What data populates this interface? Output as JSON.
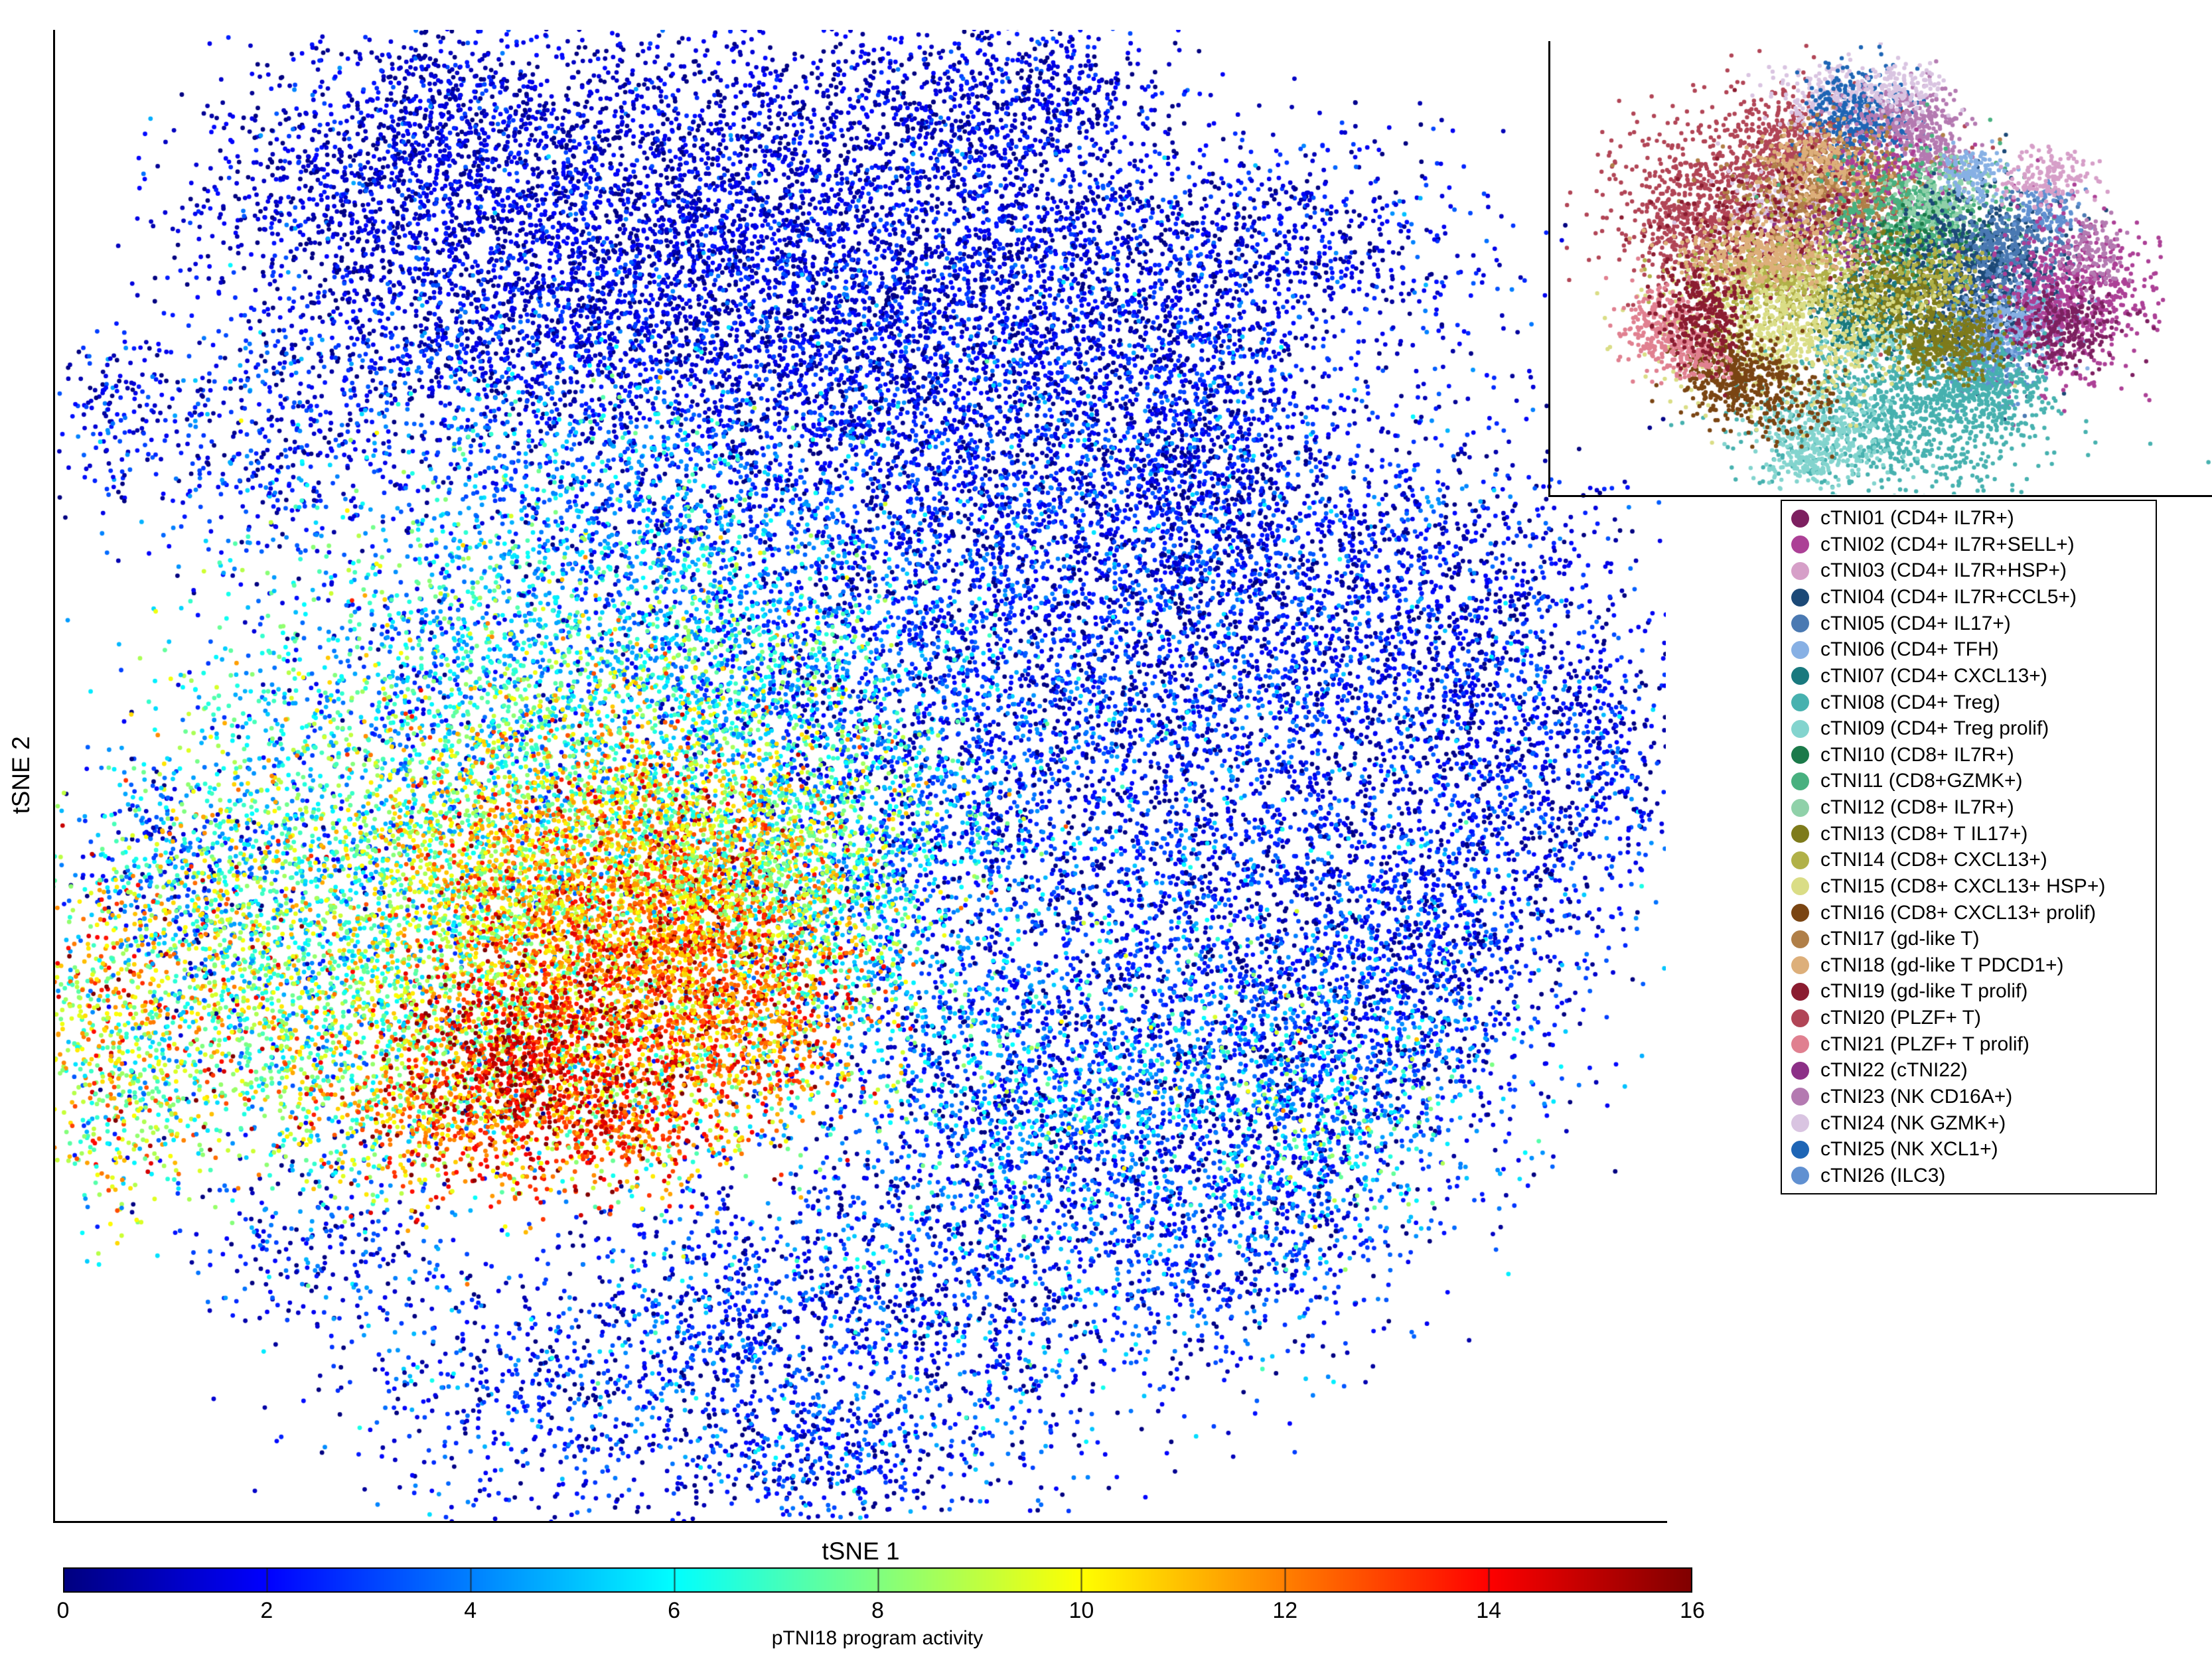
{
  "axes": {
    "xlabel": "tSNE 1",
    "ylabel": "tSNE 2"
  },
  "colorbar": {
    "label": "pTNI18 program activity",
    "min": 0,
    "max": 16,
    "ticks": [
      0,
      2,
      4,
      6,
      8,
      10,
      12,
      14,
      16
    ],
    "colormap": "jet"
  },
  "legend": {
    "entries": [
      {
        "id": 1,
        "label": "cTNI01 (CD4+ IL7R+)",
        "color": "#7D2060"
      },
      {
        "id": 2,
        "label": "cTNI02 (CD4+ IL7R+SELL+)",
        "color": "#AC4096"
      },
      {
        "id": 3,
        "label": "cTNI03 (CD4+ IL7R+HSP+)",
        "color": "#D69FC8"
      },
      {
        "id": 4,
        "label": "cTNI04 (CD4+ IL7R+CCL5+)",
        "color": "#1C4977"
      },
      {
        "id": 5,
        "label": "cTNI05 (CD4+ IL17+)",
        "color": "#4A79B2"
      },
      {
        "id": 6,
        "label": "cTNI06 (CD4+ TFH)",
        "color": "#87B0E4"
      },
      {
        "id": 7,
        "label": "cTNI07 (CD4+ CXCL13+)",
        "color": "#19797E"
      },
      {
        "id": 8,
        "label": "cTNI08 (CD4+ Treg)",
        "color": "#47B1AF"
      },
      {
        "id": 9,
        "label": "cTNI09 (CD4+ Treg prolif)",
        "color": "#83D4CE"
      },
      {
        "id": 10,
        "label": "cTNI10 (CD8+ IL7R+)",
        "color": "#1B7A4A"
      },
      {
        "id": 11,
        "label": "cTNI11 (CD8+GZMK+)",
        "color": "#48B07F"
      },
      {
        "id": 12,
        "label": "cTNI12 (CD8+ IL7R+)",
        "color": "#90D1A9"
      },
      {
        "id": 13,
        "label": "cTNI13 (CD8+ T IL17+)",
        "color": "#7E7B1B"
      },
      {
        "id": 14,
        "label": "cTNI14 (CD8+ CXCL13+)",
        "color": "#B1B148"
      },
      {
        "id": 15,
        "label": "cTNI15 (CD8+ CXCL13+ HSP+)",
        "color": "#DADD86"
      },
      {
        "id": 16,
        "label": "cTNI16 (CD8+ CXCL13+ prolif)",
        "color": "#7A4513"
      },
      {
        "id": 17,
        "label": "cTNI17 (gd-like T)",
        "color": "#B07F48"
      },
      {
        "id": 18,
        "label": "cTNI18 (gd-like T PDCD1+)",
        "color": "#DDAF7A"
      },
      {
        "id": 19,
        "label": "cTNI19 (gd-like T prolif)",
        "color": "#8B1C30"
      },
      {
        "id": 20,
        "label": "cTNI20 (PLZF+ T)",
        "color": "#B14556"
      },
      {
        "id": 21,
        "label": "cTNI21 (PLZF+ T prolif)",
        "color": "#E08090"
      },
      {
        "id": 22,
        "label": "cTNI22 (cTNI22)",
        "color": "#8C3087"
      },
      {
        "id": 23,
        "label": "cTNI23 (NK CD16A+)",
        "color": "#B47AB1"
      },
      {
        "id": 24,
        "label": "cTNI24 (NK GZMK+)",
        "color": "#D9C4E1"
      },
      {
        "id": 25,
        "label": "cTNI25 (NK XCL1+)",
        "color": "#1E65B5"
      },
      {
        "id": 26,
        "label": "cTNI26 (ILC3)",
        "color": "#6090D1"
      }
    ]
  },
  "chart_data": {
    "type": "scatter",
    "title": "",
    "main_panel": {
      "kind": "tsne_embedding_colored_by_program_activity",
      "xlabel": "tSNE 1",
      "ylabel": "tSNE 2",
      "color_by": "pTNI18 program activity",
      "value_range": [
        0,
        16
      ],
      "colormap": "jet",
      "note": "Dense single-cell map, mostly low activity (blue); high activity (orange/red, up to 16) concentrated in left-center-lower region with dark-red cores; estimated as gaussian blob mixture",
      "cluster_fields": [
        "cx",
        "cy",
        "rx",
        "ry",
        "n",
        "value_mean",
        "value_sd"
      ],
      "clusters": [
        [
          0.24,
          0.055,
          0.035,
          0.03,
          350,
          1.2,
          1.1
        ],
        [
          0.175,
          0.105,
          0.05,
          0.04,
          500,
          1.3,
          1.2
        ],
        [
          0.28,
          0.115,
          0.09,
          0.055,
          1300,
          1.1,
          1.0
        ],
        [
          0.42,
          0.1,
          0.09,
          0.06,
          1500,
          1.2,
          1.1
        ],
        [
          0.56,
          0.05,
          0.05,
          0.03,
          500,
          1.3,
          1.1
        ],
        [
          0.625,
          0.035,
          0.03,
          0.02,
          150,
          1.3,
          1.1
        ],
        [
          0.6,
          0.13,
          0.07,
          0.05,
          900,
          1.4,
          1.2
        ],
        [
          0.7,
          0.165,
          0.05,
          0.04,
          500,
          1.5,
          1.3
        ],
        [
          0.8,
          0.145,
          0.05,
          0.04,
          450,
          1.4,
          1.2
        ],
        [
          0.345,
          0.19,
          0.07,
          0.05,
          900,
          1.6,
          1.3
        ],
        [
          0.48,
          0.185,
          0.08,
          0.055,
          1000,
          1.5,
          1.3
        ],
        [
          0.24,
          0.21,
          0.06,
          0.045,
          650,
          1.8,
          1.5
        ],
        [
          0.57,
          0.23,
          0.07,
          0.05,
          800,
          1.7,
          1.4
        ],
        [
          0.67,
          0.26,
          0.06,
          0.05,
          700,
          1.8,
          1.5
        ],
        [
          0.715,
          0.285,
          0.03,
          0.055,
          450,
          1.9,
          1.5
        ],
        [
          0.47,
          0.27,
          0.07,
          0.05,
          800,
          1.9,
          1.6
        ],
        [
          0.13,
          0.28,
          0.05,
          0.045,
          450,
          2.0,
          1.6
        ],
        [
          0.035,
          0.25,
          0.02,
          0.03,
          130,
          1.8,
          1.4
        ],
        [
          0.75,
          0.36,
          0.08,
          0.07,
          1100,
          1.8,
          1.5
        ],
        [
          0.86,
          0.38,
          0.06,
          0.06,
          700,
          1.7,
          1.4
        ],
        [
          0.92,
          0.47,
          0.045,
          0.06,
          500,
          1.8,
          1.5
        ],
        [
          0.965,
          0.49,
          0.02,
          0.035,
          150,
          1.7,
          1.3
        ],
        [
          0.8,
          0.5,
          0.08,
          0.08,
          1200,
          2.0,
          1.6
        ],
        [
          0.88,
          0.58,
          0.05,
          0.06,
          550,
          1.9,
          1.5
        ],
        [
          0.65,
          0.42,
          0.09,
          0.08,
          1400,
          2.0,
          1.7
        ],
        [
          0.57,
          0.35,
          0.07,
          0.06,
          800,
          2.0,
          1.7
        ],
        [
          0.52,
          0.46,
          0.06,
          0.07,
          700,
          2.4,
          1.9
        ],
        [
          0.62,
          0.55,
          0.07,
          0.07,
          900,
          2.3,
          1.8
        ],
        [
          0.74,
          0.63,
          0.07,
          0.06,
          800,
          2.4,
          1.9
        ],
        [
          0.82,
          0.7,
          0.06,
          0.05,
          600,
          2.6,
          2.0
        ],
        [
          0.68,
          0.73,
          0.08,
          0.06,
          900,
          2.5,
          2.0
        ],
        [
          0.56,
          0.68,
          0.06,
          0.05,
          500,
          3.0,
          2.2
        ],
        [
          0.6,
          0.8,
          0.08,
          0.07,
          1000,
          2.4,
          1.9
        ],
        [
          0.52,
          0.88,
          0.08,
          0.06,
          900,
          2.2,
          1.8
        ],
        [
          0.47,
          0.96,
          0.05,
          0.025,
          350,
          2.0,
          1.6
        ],
        [
          0.4,
          0.86,
          0.05,
          0.05,
          500,
          2.3,
          1.8
        ],
        [
          0.3,
          0.92,
          0.06,
          0.04,
          550,
          2.1,
          1.7
        ],
        [
          0.17,
          0.82,
          0.04,
          0.04,
          300,
          2.2,
          1.7
        ],
        [
          0.74,
          0.82,
          0.05,
          0.04,
          400,
          2.3,
          1.8
        ],
        [
          0.84,
          0.62,
          0.04,
          0.04,
          300,
          2.0,
          1.6
        ],
        [
          0.07,
          0.56,
          0.03,
          0.04,
          250,
          3.0,
          2.0
        ],
        [
          0.3,
          0.38,
          0.08,
          0.06,
          900,
          4.5,
          2.2
        ],
        [
          0.22,
          0.45,
          0.07,
          0.06,
          800,
          5.5,
          2.4
        ],
        [
          0.15,
          0.54,
          0.06,
          0.06,
          700,
          6.0,
          2.6
        ],
        [
          0.36,
          0.45,
          0.07,
          0.05,
          800,
          6.5,
          2.4
        ],
        [
          0.44,
          0.52,
          0.06,
          0.05,
          700,
          7.0,
          2.4
        ],
        [
          0.25,
          0.6,
          0.07,
          0.06,
          900,
          8.0,
          2.6
        ],
        [
          0.18,
          0.68,
          0.06,
          0.05,
          700,
          7.5,
          2.8
        ],
        [
          0.3,
          0.52,
          0.06,
          0.05,
          800,
          8.5,
          2.4
        ],
        [
          0.47,
          0.62,
          0.05,
          0.05,
          550,
          5.5,
          2.4
        ],
        [
          0.52,
          0.56,
          0.05,
          0.05,
          450,
          4.5,
          2.2
        ],
        [
          0.08,
          0.64,
          0.035,
          0.05,
          400,
          9.5,
          3.0
        ],
        [
          0.05,
          0.72,
          0.03,
          0.04,
          300,
          8.0,
          3.0
        ],
        [
          0.25,
          0.68,
          0.06,
          0.05,
          700,
          9.0,
          2.6
        ],
        [
          0.36,
          0.7,
          0.05,
          0.04,
          600,
          9.5,
          2.6
        ],
        [
          0.44,
          0.44,
          0.05,
          0.04,
          450,
          5.0,
          2.2
        ],
        [
          0.75,
          0.7,
          0.05,
          0.04,
          400,
          4.5,
          2.6
        ],
        [
          0.8,
          0.75,
          0.04,
          0.03,
          250,
          5.0,
          2.6
        ],
        [
          0.63,
          0.72,
          0.04,
          0.03,
          250,
          4.5,
          2.4
        ],
        [
          0.13,
          0.6,
          0.05,
          0.05,
          500,
          7.0,
          2.8
        ],
        [
          0.33,
          0.3,
          0.06,
          0.05,
          500,
          3.5,
          2.0
        ],
        [
          0.42,
          0.36,
          0.06,
          0.05,
          500,
          4.0,
          2.2
        ],
        [
          0.035,
          0.66,
          0.025,
          0.05,
          300,
          10.0,
          3.0
        ],
        [
          0.355,
          0.575,
          0.05,
          0.05,
          900,
          11.5,
          2.0
        ],
        [
          0.4,
          0.62,
          0.045,
          0.045,
          900,
          13.0,
          1.8
        ],
        [
          0.33,
          0.64,
          0.05,
          0.045,
          800,
          12.0,
          2.0
        ],
        [
          0.29,
          0.57,
          0.045,
          0.04,
          600,
          10.5,
          2.2
        ],
        [
          0.4,
          0.555,
          0.04,
          0.035,
          500,
          10.0,
          2.2
        ],
        [
          0.29,
          0.685,
          0.035,
          0.03,
          550,
          14.8,
          1.0
        ],
        [
          0.34,
          0.73,
          0.04,
          0.025,
          450,
          13.5,
          1.5
        ],
        [
          0.235,
          0.73,
          0.035,
          0.025,
          350,
          12.5,
          1.8
        ],
        [
          0.43,
          0.67,
          0.035,
          0.03,
          400,
          12.0,
          1.8
        ],
        [
          0.465,
          0.57,
          0.035,
          0.035,
          350,
          9.0,
          2.2
        ]
      ]
    },
    "inset_panel": {
      "kind": "tsne_embedding_colored_by_cluster",
      "note": "Same embedding colored by cTNI cluster assignment (colors from legend); estimated as gaussian blob mixture",
      "cluster_fields": [
        "cx",
        "cy",
        "rx",
        "ry",
        "n",
        "legend_id"
      ],
      "clusters": [
        [
          0.26,
          0.33,
          0.13,
          0.11,
          900,
          20
        ],
        [
          0.15,
          0.42,
          0.05,
          0.05,
          250,
          20
        ],
        [
          0.34,
          0.22,
          0.06,
          0.05,
          300,
          20
        ],
        [
          0.4,
          0.12,
          0.05,
          0.04,
          220,
          24
        ],
        [
          0.3,
          0.38,
          0.06,
          0.05,
          150,
          24
        ],
        [
          0.46,
          0.16,
          0.05,
          0.06,
          400,
          25
        ],
        [
          0.54,
          0.17,
          0.05,
          0.04,
          280,
          23
        ],
        [
          0.6,
          0.26,
          0.03,
          0.03,
          120,
          23
        ],
        [
          0.53,
          0.1,
          0.04,
          0.03,
          150,
          24
        ],
        [
          0.42,
          0.33,
          0.09,
          0.07,
          700,
          17
        ],
        [
          0.38,
          0.28,
          0.05,
          0.04,
          250,
          18
        ],
        [
          0.3,
          0.42,
          0.09,
          0.07,
          250,
          19
        ],
        [
          0.42,
          0.44,
          0.06,
          0.05,
          120,
          22
        ],
        [
          0.52,
          0.28,
          0.05,
          0.04,
          100,
          2
        ],
        [
          0.56,
          0.4,
          0.08,
          0.07,
          650,
          11
        ],
        [
          0.6,
          0.35,
          0.05,
          0.04,
          200,
          12
        ],
        [
          0.58,
          0.45,
          0.06,
          0.05,
          130,
          10
        ],
        [
          0.67,
          0.53,
          0.08,
          0.09,
          800,
          4
        ],
        [
          0.73,
          0.45,
          0.05,
          0.05,
          300,
          5
        ],
        [
          0.7,
          0.6,
          0.06,
          0.06,
          200,
          5
        ],
        [
          0.75,
          0.62,
          0.05,
          0.05,
          300,
          6
        ],
        [
          0.66,
          0.29,
          0.03,
          0.03,
          140,
          6
        ],
        [
          0.8,
          0.38,
          0.03,
          0.03,
          120,
          26
        ],
        [
          0.68,
          0.72,
          0.04,
          0.04,
          200,
          26
        ],
        [
          0.85,
          0.57,
          0.07,
          0.09,
          650,
          2
        ],
        [
          0.83,
          0.64,
          0.05,
          0.05,
          250,
          1
        ],
        [
          0.8,
          0.3,
          0.04,
          0.03,
          160,
          3
        ],
        [
          0.88,
          0.47,
          0.03,
          0.04,
          120,
          23
        ],
        [
          0.53,
          0.83,
          0.13,
          0.1,
          1100,
          8
        ],
        [
          0.68,
          0.78,
          0.06,
          0.05,
          300,
          8
        ],
        [
          0.4,
          0.88,
          0.06,
          0.05,
          350,
          9
        ],
        [
          0.47,
          0.66,
          0.04,
          0.03,
          150,
          9
        ],
        [
          0.36,
          0.95,
          0.03,
          0.02,
          100,
          9
        ],
        [
          0.46,
          0.6,
          0.05,
          0.05,
          300,
          7
        ],
        [
          0.52,
          0.56,
          0.06,
          0.05,
          350,
          13
        ],
        [
          0.61,
          0.67,
          0.05,
          0.04,
          400,
          13
        ],
        [
          0.6,
          0.52,
          0.05,
          0.04,
          150,
          14
        ],
        [
          0.3,
          0.53,
          0.08,
          0.06,
          500,
          14
        ],
        [
          0.33,
          0.64,
          0.1,
          0.08,
          800,
          15
        ],
        [
          0.28,
          0.47,
          0.08,
          0.04,
          400,
          18
        ],
        [
          0.22,
          0.74,
          0.05,
          0.05,
          350,
          16
        ],
        [
          0.3,
          0.8,
          0.06,
          0.05,
          200,
          16
        ],
        [
          0.1,
          0.64,
          0.04,
          0.05,
          250,
          21
        ],
        [
          0.16,
          0.7,
          0.03,
          0.03,
          120,
          21
        ],
        [
          0.17,
          0.6,
          0.04,
          0.06,
          300,
          19
        ]
      ]
    }
  }
}
